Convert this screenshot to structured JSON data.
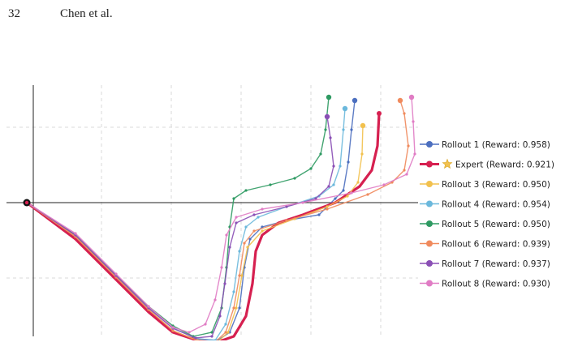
{
  "header": {
    "page_number": "32",
    "running_head": "Chen et al."
  },
  "chart_data": {
    "type": "line",
    "title": "",
    "xlabel": "",
    "ylabel": "",
    "grid": true,
    "legend_placement": "right",
    "start_marker": "black-dot",
    "series": [
      {
        "name": "Rollout 1 (Reward: 0.958)",
        "color": "#4c6fbf",
        "marker": "circle",
        "role": "rollout",
        "points": [
          [
            0,
            0
          ],
          [
            60,
            -40
          ],
          [
            110,
            -90
          ],
          [
            150,
            -130
          ],
          [
            180,
            -155
          ],
          [
            210,
            -168
          ],
          [
            235,
            -170
          ],
          [
            250,
            -160
          ],
          [
            262,
            -130
          ],
          [
            268,
            -80
          ],
          [
            275,
            -45
          ],
          [
            290,
            -30
          ],
          [
            320,
            -22
          ],
          [
            360,
            -15
          ],
          [
            380,
            5
          ],
          [
            390,
            15
          ],
          [
            396,
            50
          ],
          [
            400,
            90
          ],
          [
            404,
            126
          ]
        ]
      },
      {
        "name": "Expert (Reward: 0.921)",
        "color": "#d62050",
        "marker": "star",
        "role": "expert",
        "points": [
          [
            0,
            0
          ],
          [
            60,
            -45
          ],
          [
            110,
            -95
          ],
          [
            150,
            -135
          ],
          [
            180,
            -160
          ],
          [
            210,
            -170
          ],
          [
            235,
            -172
          ],
          [
            255,
            -165
          ],
          [
            270,
            -140
          ],
          [
            278,
            -100
          ],
          [
            282,
            -60
          ],
          [
            290,
            -40
          ],
          [
            310,
            -25
          ],
          [
            340,
            -15
          ],
          [
            380,
            0
          ],
          [
            410,
            20
          ],
          [
            425,
            40
          ],
          [
            432,
            70
          ],
          [
            434,
            110
          ]
        ]
      },
      {
        "name": "Rollout 3 (Reward: 0.950)",
        "color": "#f2c14e",
        "marker": "circle",
        "role": "rollout",
        "points": [
          [
            0,
            0
          ],
          [
            60,
            -42
          ],
          [
            110,
            -92
          ],
          [
            150,
            -132
          ],
          [
            180,
            -158
          ],
          [
            210,
            -170
          ],
          [
            235,
            -172
          ],
          [
            248,
            -160
          ],
          [
            258,
            -130
          ],
          [
            265,
            -90
          ],
          [
            272,
            -55
          ],
          [
            290,
            -35
          ],
          [
            330,
            -20
          ],
          [
            370,
            -5
          ],
          [
            395,
            8
          ],
          [
            408,
            25
          ],
          [
            413,
            60
          ],
          [
            414,
            95
          ]
        ]
      },
      {
        "name": "Rollout 4 (Reward: 0.954)",
        "color": "#6bb8dc",
        "marker": "circle",
        "role": "rollout",
        "points": [
          [
            0,
            0
          ],
          [
            60,
            -40
          ],
          [
            110,
            -90
          ],
          [
            150,
            -130
          ],
          [
            180,
            -155
          ],
          [
            210,
            -168
          ],
          [
            232,
            -170
          ],
          [
            245,
            -150
          ],
          [
            255,
            -110
          ],
          [
            262,
            -60
          ],
          [
            270,
            -30
          ],
          [
            285,
            -18
          ],
          [
            320,
            -5
          ],
          [
            360,
            8
          ],
          [
            378,
            22
          ],
          [
            386,
            45
          ],
          [
            390,
            90
          ],
          [
            392,
            116
          ]
        ]
      },
      {
        "name": "Rollout 5 (Reward: 0.950)",
        "color": "#2e9a62",
        "marker": "circle",
        "role": "rollout",
        "points": [
          [
            0,
            0
          ],
          [
            60,
            -40
          ],
          [
            110,
            -90
          ],
          [
            150,
            -128
          ],
          [
            180,
            -152
          ],
          [
            205,
            -165
          ],
          [
            228,
            -160
          ],
          [
            240,
            -130
          ],
          [
            246,
            -80
          ],
          [
            250,
            -30
          ],
          [
            255,
            5
          ],
          [
            270,
            15
          ],
          [
            300,
            22
          ],
          [
            330,
            30
          ],
          [
            350,
            42
          ],
          [
            362,
            60
          ],
          [
            368,
            90
          ],
          [
            372,
            130
          ]
        ]
      },
      {
        "name": "Rollout 6 (Reward: 0.939)",
        "color": "#f08a5d",
        "marker": "circle",
        "role": "rollout",
        "points": [
          [
            0,
            0
          ],
          [
            60,
            -42
          ],
          [
            110,
            -92
          ],
          [
            150,
            -132
          ],
          [
            180,
            -158
          ],
          [
            210,
            -170
          ],
          [
            232,
            -172
          ],
          [
            245,
            -160
          ],
          [
            255,
            -130
          ],
          [
            262,
            -90
          ],
          [
            268,
            -50
          ],
          [
            280,
            -35
          ],
          [
            320,
            -22
          ],
          [
            370,
            -8
          ],
          [
            420,
            10
          ],
          [
            450,
            25
          ],
          [
            465,
            40
          ],
          [
            470,
            70
          ],
          [
            465,
            110
          ],
          [
            460,
            126
          ]
        ]
      },
      {
        "name": "Rollout 7 (Reward: 0.937)",
        "color": "#8a4fb5",
        "marker": "circle",
        "role": "rollout",
        "points": [
          [
            0,
            0
          ],
          [
            60,
            -40
          ],
          [
            110,
            -90
          ],
          [
            150,
            -130
          ],
          [
            180,
            -155
          ],
          [
            208,
            -167
          ],
          [
            228,
            -165
          ],
          [
            238,
            -140
          ],
          [
            244,
            -100
          ],
          [
            250,
            -55
          ],
          [
            258,
            -25
          ],
          [
            280,
            -15
          ],
          [
            320,
            -5
          ],
          [
            356,
            5
          ],
          [
            372,
            20
          ],
          [
            378,
            45
          ],
          [
            374,
            80
          ],
          [
            370,
            106
          ]
        ]
      },
      {
        "name": "Rollout 8 (Reward: 0.930)",
        "color": "#e07cc4",
        "marker": "circle",
        "role": "rollout",
        "points": [
          [
            0,
            0
          ],
          [
            60,
            -38
          ],
          [
            110,
            -88
          ],
          [
            150,
            -128
          ],
          [
            180,
            -154
          ],
          [
            200,
            -160
          ],
          [
            220,
            -150
          ],
          [
            232,
            -120
          ],
          [
            240,
            -80
          ],
          [
            246,
            -40
          ],
          [
            258,
            -18
          ],
          [
            290,
            -8
          ],
          [
            340,
            0
          ],
          [
            400,
            12
          ],
          [
            440,
            22
          ],
          [
            468,
            35
          ],
          [
            478,
            60
          ],
          [
            476,
            100
          ],
          [
            474,
            130
          ]
        ]
      }
    ]
  }
}
